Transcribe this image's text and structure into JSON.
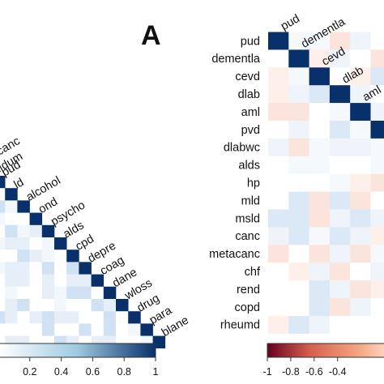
{
  "panel_label": "A",
  "colors": {
    "strong_positive": "#08306b",
    "strong_negative": "#67001f",
    "neutral": "#f7f7f7"
  },
  "chart_data": [
    {
      "type": "heatmap",
      "title": "",
      "partial": true,
      "labels": [
        "pud",
        "ld",
        "alcohol",
        "ond",
        "psycho",
        "alds",
        "cpd",
        "depre",
        "coag",
        "dane",
        "wloss",
        "drug",
        "para",
        "blane"
      ],
      "partial_labels": [
        "acanc",
        "olldum"
      ],
      "diagonal_value": 1,
      "colorbar": {
        "ticks": [
          "0.2",
          "0.4",
          "0.6",
          "0.8",
          "1"
        ],
        "range": [
          0,
          1
        ],
        "colors": [
          "#ffffff",
          "#08306b"
        ]
      }
    },
    {
      "type": "heatmap",
      "title": "",
      "partial": true,
      "rows": [
        "pud",
        "dementla",
        "cevd",
        "dlab",
        "aml",
        "pvd",
        "dlabwc",
        "alds",
        "hp",
        "mld",
        "msld",
        "canc",
        "metacanc",
        "chf",
        "rend",
        "copd",
        "rheumd"
      ],
      "columns": [
        "pud",
        "dementla",
        "cevd",
        "dlab",
        "aml"
      ],
      "diagonal_value": 1,
      "colorbar": {
        "ticks": [
          "-1",
          "-0.8",
          "-0.6",
          "-0.4"
        ],
        "range": [
          -1,
          1
        ],
        "colors": [
          "#67001f",
          "#f7f7f7",
          "#08306b"
        ]
      }
    }
  ]
}
